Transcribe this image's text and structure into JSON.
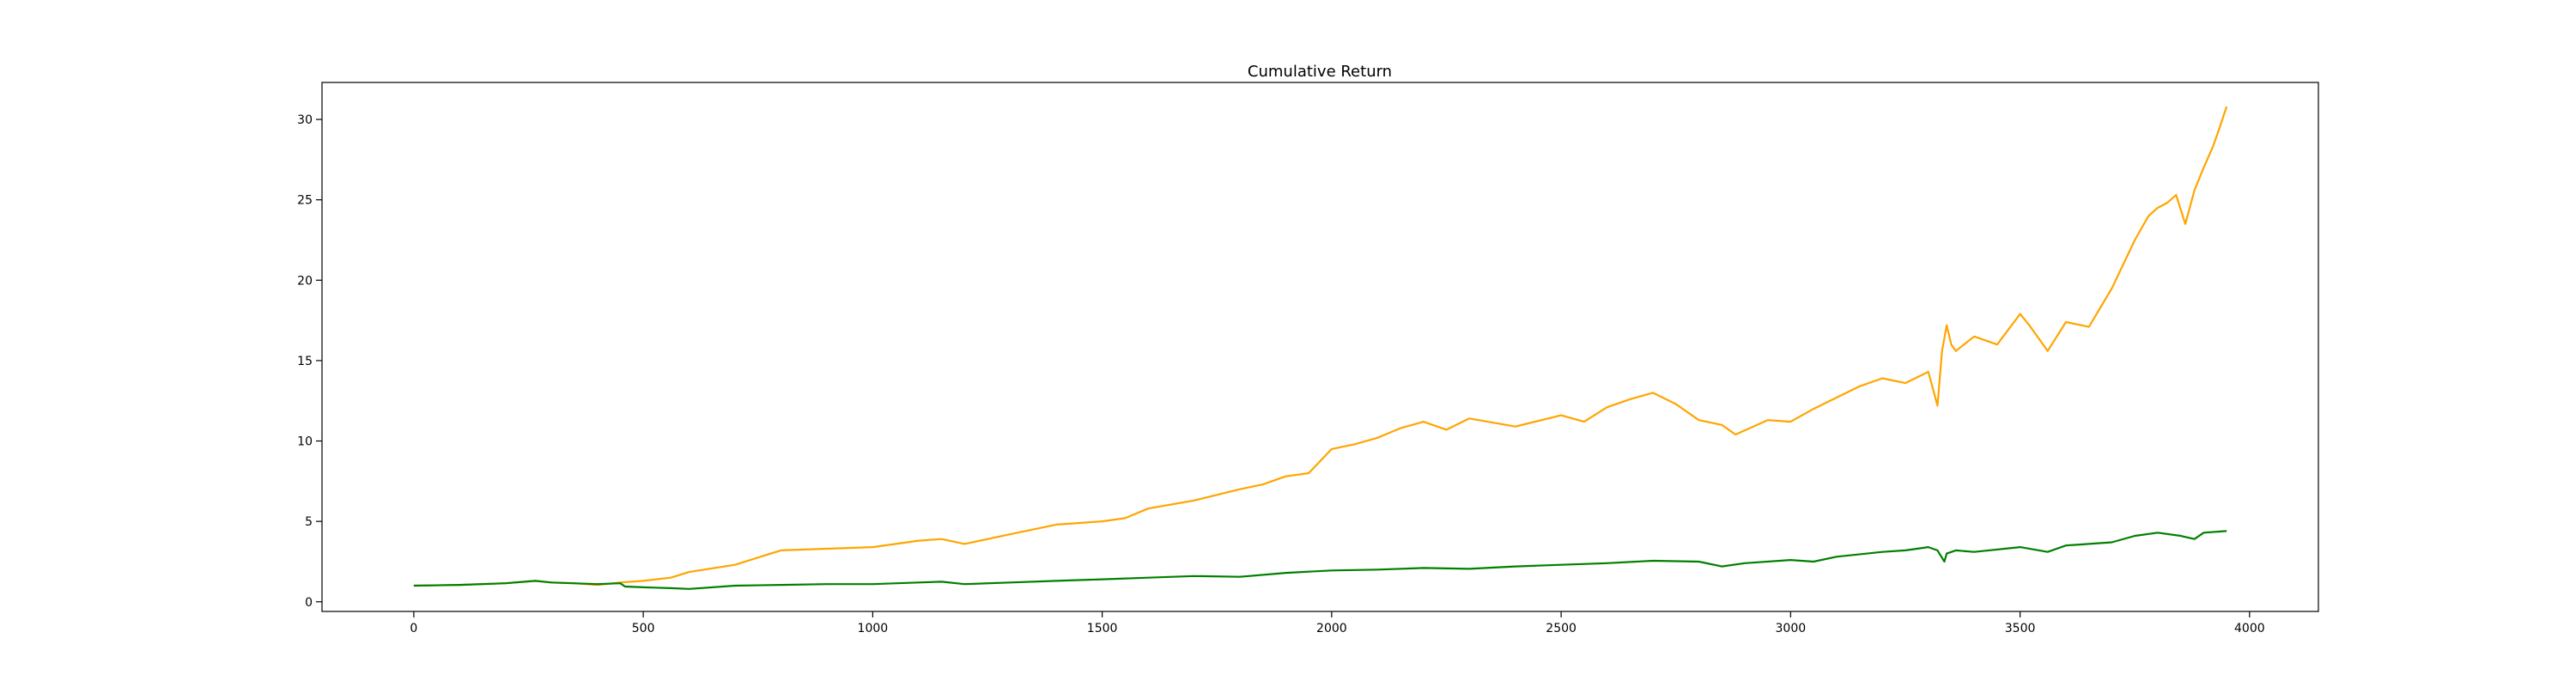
{
  "chart_data": {
    "type": "line",
    "title": "Cumulative Return",
    "xlabel": "",
    "ylabel": "",
    "xlim": [
      -200,
      4150
    ],
    "ylim": [
      -0.6,
      32.3
    ],
    "x_ticks": [
      0,
      500,
      1000,
      1500,
      2000,
      2500,
      3000,
      3500,
      4000
    ],
    "y_ticks": [
      0,
      5,
      10,
      15,
      20,
      25,
      30
    ],
    "grid": false,
    "legend": "none",
    "series": [
      {
        "color": "#ffa500",
        "x": [
          0,
          100,
          200,
          265,
          300,
          350,
          400,
          450,
          500,
          560,
          600,
          700,
          800,
          900,
          1000,
          1050,
          1100,
          1150,
          1200,
          1300,
          1400,
          1500,
          1550,
          1600,
          1700,
          1800,
          1850,
          1900,
          1950,
          2000,
          2050,
          2100,
          2150,
          2200,
          2250,
          2300,
          2400,
          2500,
          2550,
          2600,
          2650,
          2700,
          2750,
          2800,
          2850,
          2880,
          2950,
          3000,
          3050,
          3100,
          3150,
          3200,
          3250,
          3300,
          3320,
          3330,
          3340,
          3350,
          3360,
          3400,
          3450,
          3500,
          3520,
          3560,
          3600,
          3650,
          3700,
          3750,
          3780,
          3800,
          3820,
          3840,
          3860,
          3880,
          3900,
          3920,
          3935,
          3950
        ],
        "y": [
          1.0,
          1.05,
          1.15,
          1.3,
          1.2,
          1.15,
          1.05,
          1.2,
          1.3,
          1.5,
          1.85,
          2.3,
          3.2,
          3.3,
          3.4,
          3.6,
          3.8,
          3.9,
          3.6,
          4.2,
          4.8,
          5.0,
          5.2,
          5.8,
          6.3,
          7.0,
          7.3,
          7.8,
          8.0,
          9.5,
          9.8,
          10.2,
          10.8,
          11.2,
          10.7,
          11.4,
          10.9,
          11.6,
          11.2,
          12.1,
          12.6,
          13.0,
          12.3,
          11.3,
          11.0,
          10.4,
          11.3,
          11.2,
          12.0,
          12.7,
          13.4,
          13.9,
          13.6,
          14.3,
          12.2,
          15.6,
          17.2,
          16.0,
          15.6,
          16.5,
          16.0,
          17.9,
          17.2,
          15.6,
          17.4,
          17.1,
          19.5,
          22.5,
          24.0,
          24.5,
          24.8,
          25.3,
          23.5,
          25.6,
          27.0,
          28.3,
          29.5,
          30.8
        ]
      },
      {
        "color": "#008000",
        "x": [
          0,
          100,
          200,
          265,
          300,
          400,
          450,
          460,
          500,
          560,
          600,
          700,
          800,
          900,
          1000,
          1100,
          1150,
          1200,
          1300,
          1400,
          1500,
          1600,
          1700,
          1800,
          1900,
          2000,
          2100,
          2200,
          2300,
          2400,
          2500,
          2600,
          2700,
          2800,
          2850,
          2900,
          3000,
          3050,
          3100,
          3200,
          3250,
          3300,
          3320,
          3335,
          3340,
          3360,
          3400,
          3500,
          3560,
          3600,
          3700,
          3750,
          3800,
          3850,
          3880,
          3900,
          3950
        ],
        "y": [
          1.0,
          1.05,
          1.15,
          1.3,
          1.2,
          1.1,
          1.15,
          0.95,
          0.9,
          0.85,
          0.8,
          1.0,
          1.05,
          1.1,
          1.1,
          1.2,
          1.25,
          1.1,
          1.2,
          1.3,
          1.4,
          1.5,
          1.6,
          1.55,
          1.8,
          1.95,
          2.0,
          2.1,
          2.05,
          2.2,
          2.3,
          2.4,
          2.55,
          2.5,
          2.2,
          2.4,
          2.6,
          2.5,
          2.8,
          3.1,
          3.2,
          3.4,
          3.2,
          2.5,
          3.0,
          3.2,
          3.1,
          3.4,
          3.1,
          3.5,
          3.7,
          4.1,
          4.3,
          4.1,
          3.9,
          4.3,
          4.4
        ]
      }
    ]
  }
}
